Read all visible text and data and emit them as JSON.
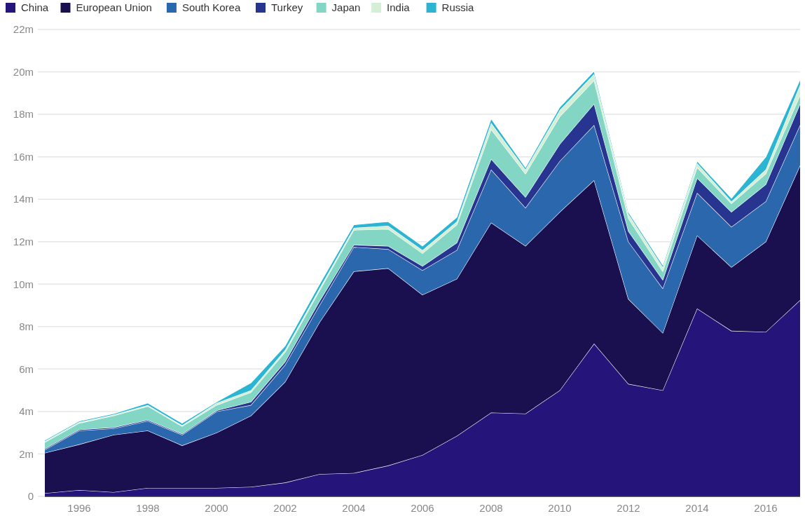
{
  "chart_data": {
    "type": "area",
    "stacked": true,
    "x": [
      1995,
      1996,
      1997,
      1998,
      1999,
      2000,
      2001,
      2002,
      2003,
      2004,
      2005,
      2006,
      2007,
      2008,
      2009,
      2010,
      2011,
      2012,
      2013,
      2014,
      2015,
      2016,
      2017
    ],
    "series": [
      {
        "name": "China",
        "color": "#25147a",
        "values": [
          0.15,
          0.3,
          0.2,
          0.4,
          0.4,
          0.4,
          0.45,
          0.65,
          1.05,
          1.1,
          1.45,
          1.95,
          2.85,
          3.95,
          3.9,
          5.0,
          7.2,
          5.3,
          5.0,
          8.85,
          7.8,
          7.75,
          9.25
        ]
      },
      {
        "name": "European Union",
        "color": "#1a0f4f",
        "values": [
          1.9,
          2.15,
          2.7,
          2.7,
          2.0,
          2.6,
          3.35,
          4.75,
          7.15,
          9.5,
          9.3,
          7.55,
          7.4,
          8.95,
          7.9,
          8.4,
          7.7,
          4.0,
          2.7,
          3.45,
          3.0,
          4.25,
          6.35
        ]
      },
      {
        "name": "South Korea",
        "color": "#2a67ac",
        "values": [
          0.15,
          0.65,
          0.3,
          0.45,
          0.5,
          1.0,
          0.5,
          0.8,
          0.8,
          1.15,
          0.9,
          1.15,
          1.35,
          2.5,
          1.8,
          2.4,
          2.6,
          2.7,
          2.1,
          2.0,
          1.9,
          1.9,
          1.9
        ]
      },
      {
        "name": "Turkey",
        "color": "#273591",
        "values": [
          0.05,
          0.05,
          0.05,
          0.05,
          0.05,
          0.05,
          0.15,
          0.15,
          0.2,
          0.1,
          0.15,
          0.2,
          0.35,
          0.5,
          0.5,
          0.8,
          1.0,
          0.5,
          0.4,
          0.7,
          0.7,
          0.8,
          1.0
        ]
      },
      {
        "name": "Japan",
        "color": "#82d6c3",
        "values": [
          0.3,
          0.3,
          0.55,
          0.65,
          0.35,
          0.25,
          0.45,
          0.45,
          0.5,
          0.7,
          0.8,
          0.6,
          0.85,
          1.4,
          1.1,
          1.3,
          1.1,
          0.6,
          0.4,
          0.5,
          0.4,
          0.5,
          0.4
        ]
      },
      {
        "name": "India",
        "color": "#d3efd6",
        "values": [
          0.05,
          0.05,
          0.05,
          0.05,
          0.05,
          0.1,
          0.1,
          0.1,
          0.1,
          0.1,
          0.15,
          0.15,
          0.15,
          0.3,
          0.2,
          0.3,
          0.3,
          0.2,
          0.2,
          0.2,
          0.1,
          0.2,
          0.5
        ]
      },
      {
        "name": "Russia",
        "color": "#2bb5d3",
        "values": [
          0.05,
          0.05,
          0.05,
          0.1,
          0.1,
          0.05,
          0.35,
          0.2,
          0.2,
          0.15,
          0.2,
          0.2,
          0.2,
          0.2,
          0.1,
          0.15,
          0.15,
          0.1,
          0.1,
          0.1,
          0.15,
          0.6,
          0.25
        ]
      }
    ],
    "xlim": [
      1995,
      2017
    ],
    "xticks": [
      1996,
      1998,
      2000,
      2002,
      2004,
      2006,
      2008,
      2010,
      2012,
      2014,
      2016
    ],
    "ylim": [
      0,
      22
    ],
    "yticks": [
      {
        "value": 0,
        "label": "0"
      },
      {
        "value": 2,
        "label": "2m"
      },
      {
        "value": 4,
        "label": "4m"
      },
      {
        "value": 6,
        "label": "6m"
      },
      {
        "value": 8,
        "label": "8m"
      },
      {
        "value": 10,
        "label": "10m"
      },
      {
        "value": 12,
        "label": "12m"
      },
      {
        "value": 14,
        "label": "14m"
      },
      {
        "value": 16,
        "label": "16m"
      },
      {
        "value": 18,
        "label": "18m"
      },
      {
        "value": 20,
        "label": "20m"
      },
      {
        "value": 22,
        "label": "22m"
      }
    ],
    "grid": "y",
    "legend": "top left"
  }
}
